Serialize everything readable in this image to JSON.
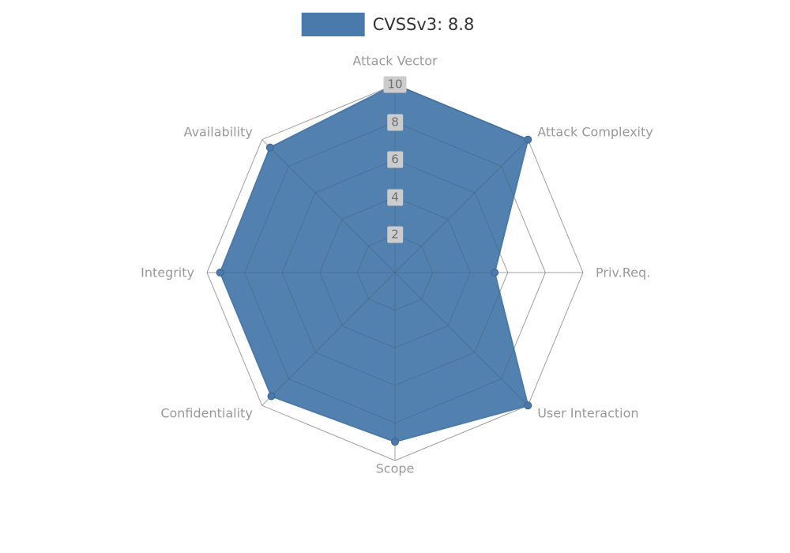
{
  "chart_data": {
    "type": "radar",
    "legend": "CVSSv3: 8.8",
    "legend_position": "top-center",
    "categories": [
      "Attack Vector",
      "Attack Complexity",
      "Priv.Req.",
      "User Interaction",
      "Scope",
      "Confidentiality",
      "Integrity",
      "Availability"
    ],
    "values": [
      10,
      10,
      5.3,
      10,
      9,
      9.3,
      9.3,
      9.4
    ],
    "max": 10,
    "ticks": [
      2,
      4,
      6,
      8,
      10
    ],
    "grid": "on",
    "series_color": "#4a7aab",
    "grid_color": "#b8b8b8",
    "axis_label_color": "#999999",
    "tick_label_bg": "#cccccc",
    "tick_label_color": "#6e6e6e",
    "legend_text_color": "#333333"
  }
}
